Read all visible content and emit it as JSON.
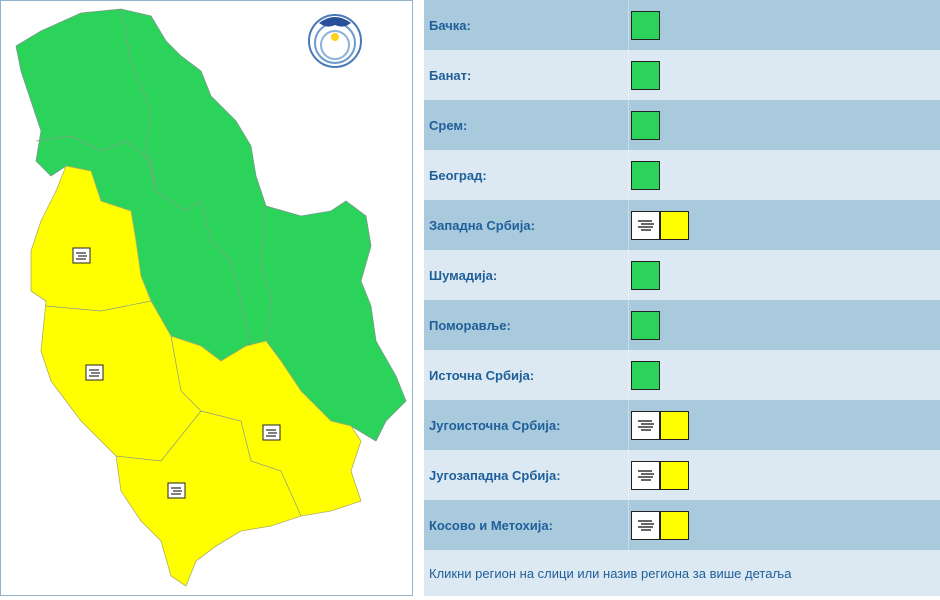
{
  "logo": {
    "text": "РХМЗ СРБИЈЕ"
  },
  "colors": {
    "green": "#2bd35b",
    "yellow": "#ffff00",
    "row_dark": "#a9c9dd",
    "row_light": "#dce9f2",
    "label": "#1f5f9a"
  },
  "regions": [
    {
      "label": "Бачка:",
      "level": "green",
      "icon": null
    },
    {
      "label": "Банат:",
      "level": "green",
      "icon": null
    },
    {
      "label": "Срем:",
      "level": "green",
      "icon": null
    },
    {
      "label": "Београд:",
      "level": "green",
      "icon": null
    },
    {
      "label": "Западна Србија:",
      "level": "yellow",
      "icon": "fog-icon"
    },
    {
      "label": "Шумадија:",
      "level": "green",
      "icon": null
    },
    {
      "label": "Поморавље:",
      "level": "green",
      "icon": null
    },
    {
      "label": "Источна Србија:",
      "level": "green",
      "icon": null
    },
    {
      "label": "Југоисточна Србија:",
      "level": "yellow",
      "icon": "fog-icon"
    },
    {
      "label": "Југозападна Србија:",
      "level": "yellow",
      "icon": "fog-icon"
    },
    {
      "label": "Косово и Метохија:",
      "level": "yellow",
      "icon": "fog-icon"
    }
  ],
  "footer": "Кликни регион на слици или назив региона за више детаља"
}
